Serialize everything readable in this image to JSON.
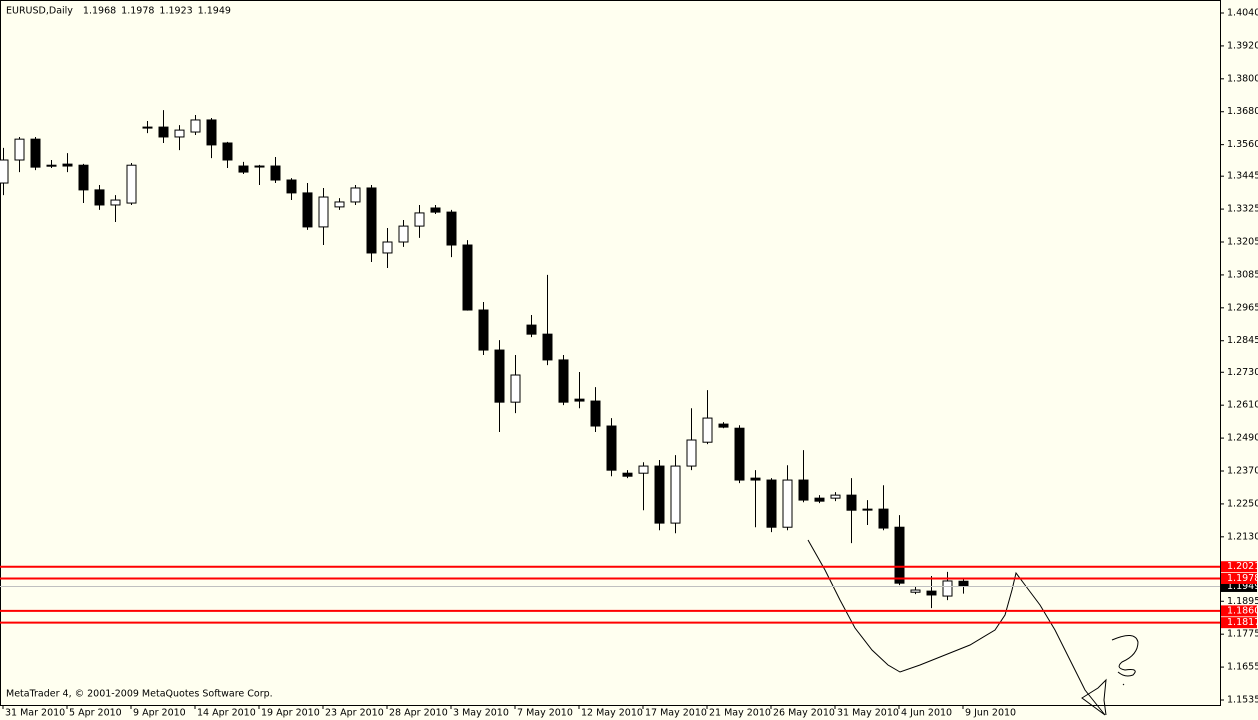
{
  "chart_data": {
    "type": "candlestick",
    "title": "EURUSD,Daily",
    "footer": "MetaTrader 4, © 2001-2009 MetaQuotes Software Corp.",
    "categories": [
      "31 Mar 2010",
      null,
      null,
      null,
      "5 Apr 2010",
      null,
      null,
      null,
      "9 Apr 2010",
      null,
      null,
      null,
      "14 Apr 2010",
      null,
      null,
      null,
      "19 Apr 2010",
      null,
      null,
      null,
      "23 Apr 2010",
      null,
      null,
      null,
      "28 Apr 2010",
      null,
      null,
      null,
      "3 May 2010",
      null,
      null,
      null,
      "7 May 2010",
      null,
      null,
      null,
      "12 May 2010",
      null,
      null,
      null,
      "17 May 2010",
      null,
      null,
      null,
      "21 May 2010",
      null,
      null,
      null,
      "26 May 2010",
      null,
      null,
      null,
      "31 May 2010",
      null,
      null,
      null,
      "4 Jun 2010",
      null,
      null,
      null,
      "9 Jun 2010"
    ],
    "open": [
      1.342,
      1.3504,
      1.358,
      1.3485,
      1.3489,
      1.3485,
      1.3395,
      1.334,
      1.3347,
      1.3624,
      1.3624,
      1.3588,
      1.3606,
      1.365,
      1.3566,
      1.3482,
      1.3482,
      1.3482,
      1.3431,
      1.3384,
      1.326,
      1.3333,
      1.3351,
      1.3402,
      1.3165,
      1.3205,
      1.3263,
      1.3329,
      1.3314,
      1.3194,
      1.2957,
      1.2811,
      1.2621,
      1.2902,
      1.2869,
      1.2775,
      1.2632,
      1.2625,
      1.2534,
      1.2362,
      1.2362,
      1.2388,
      1.218,
      1.2388,
      1.2475,
      1.2541,
      1.2526,
      1.2344,
      1.2337,
      1.2165,
      1.2337,
      1.2271,
      1.2271,
      1.2282,
      1.2231,
      1.2231,
      1.2165,
      1.1928,
      1.1932,
      1.1914,
      1.1968
    ],
    "high": [
      1.3548,
      1.3588,
      1.3588,
      1.3504,
      1.3529,
      1.349,
      1.3413,
      1.3376,
      1.3493,
      1.3646,
      1.3686,
      1.3631,
      1.3668,
      1.3657,
      1.357,
      1.3497,
      1.3486,
      1.3515,
      1.3438,
      1.342,
      1.3402,
      1.3365,
      1.3413,
      1.3413,
      1.3256,
      1.3285,
      1.334,
      1.334,
      1.3322,
      1.3212,
      1.2986,
      1.2847,
      1.2793,
      1.2939,
      1.3085,
      1.2793,
      1.2731,
      1.2676,
      1.2563,
      1.2373,
      1.2402,
      1.241,
      1.2428,
      1.2599,
      1.2665,
      1.2548,
      1.2537,
      1.2373,
      1.2344,
      1.2391,
      1.2446,
      1.2282,
      1.2293,
      1.2344,
      1.2264,
      1.2318,
      1.2209,
      1.195,
      1.1987,
      1.2002,
      1.1978
    ],
    "low": [
      1.3376,
      1.346,
      1.3467,
      1.3475,
      1.346,
      1.3347,
      1.3322,
      1.3278,
      1.334,
      1.3602,
      1.3566,
      1.354,
      1.3595,
      1.3511,
      1.3475,
      1.3453,
      1.3413,
      1.342,
      1.3358,
      1.3249,
      1.3194,
      1.3322,
      1.334,
      1.3132,
      1.311,
      1.3187,
      1.322,
      1.3307,
      1.315,
      1.2955,
      1.2793,
      1.2512,
      1.2581,
      1.2858,
      1.2756,
      1.261,
      1.2599,
      1.2512,
      1.2351,
      1.2344,
      1.2227,
      1.2154,
      1.2143,
      1.2373,
      1.2468,
      1.2526,
      1.2326,
      1.2165,
      1.2147,
      1.2154,
      1.2256,
      1.2253,
      1.226,
      1.2107,
      1.2173,
      1.2154,
      1.1954,
      1.1921,
      1.187,
      1.1899,
      1.1923
    ],
    "close": [
      1.3504,
      1.358,
      1.3478,
      1.3482,
      1.3482,
      1.3395,
      1.334,
      1.3358,
      1.3485,
      1.3624,
      1.3588,
      1.3613,
      1.365,
      1.3559,
      1.3504,
      1.346,
      1.348,
      1.3431,
      1.3384,
      1.326,
      1.3369,
      1.3351,
      1.3402,
      1.3165,
      1.3205,
      1.3263,
      1.3311,
      1.3314,
      1.3194,
      1.2957,
      1.2811,
      1.2621,
      1.272,
      1.2869,
      1.2775,
      1.2621,
      1.2625,
      1.2534,
      1.2373,
      1.2351,
      1.2388,
      1.218,
      1.2388,
      1.2483,
      1.2563,
      1.253,
      1.2337,
      1.2337,
      1.2165,
      1.2337,
      1.2264,
      1.226,
      1.2282,
      1.2227,
      1.2229,
      1.2162,
      1.1961,
      1.1936,
      1.1918,
      1.1969,
      1.1949
    ],
    "ylim": [
      1.1535,
      1.404
    ],
    "yticks": [
      {
        "value": 1.404,
        "label": "1.4040"
      },
      {
        "value": 1.392,
        "label": "1.3920"
      },
      {
        "value": 1.38,
        "label": "1.3800"
      },
      {
        "value": 1.368,
        "label": "1.3680"
      },
      {
        "value": 1.356,
        "label": "1.3560"
      },
      1.3445,
      1.3325,
      1.3205,
      1.3085,
      1.2965,
      1.2845,
      {
        "value": 1.273,
        "label": "1.2730"
      },
      {
        "value": 1.261,
        "label": "1.2610"
      },
      {
        "value": 1.249,
        "label": "1.2490"
      },
      {
        "value": 1.237,
        "label": "1.2370"
      },
      {
        "value": 1.225,
        "label": "1.2250"
      },
      {
        "value": 1.213,
        "label": "1.2130"
      },
      1.1895,
      1.1775,
      1.1655,
      1.1535
    ],
    "levels": [
      1.2021,
      1.1978,
      {
        "value": 1.186,
        "label": "1.1860"
      },
      1.1817
    ],
    "level_color": "#ff0000",
    "bull_color": "#ffffff",
    "bear_color": "#000000",
    "grid": false
  }
}
